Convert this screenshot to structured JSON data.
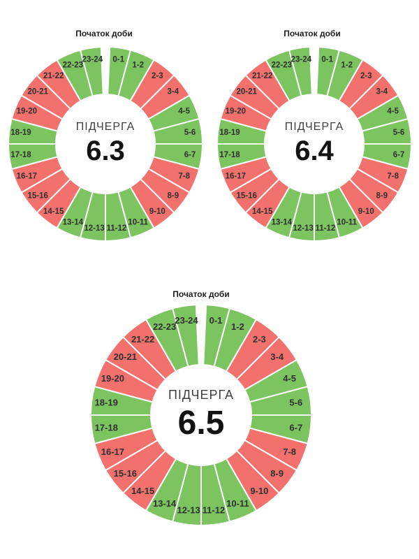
{
  "colors": {
    "green": "#7cc460",
    "red": "#f2716d",
    "separator": "#ffffff",
    "segment_label": "#2f2f2f",
    "title_text": "#1c1c1c",
    "center_label_text": "#3e3e3e",
    "center_value_text": "#121212",
    "background": "#ffffff"
  },
  "chart_data": [
    {
      "type": "donut",
      "title": "Початок доби",
      "center_label": "ПІДЧЕРГА",
      "center_value": "6.3",
      "start_angle": "top",
      "direction": "clockwise",
      "segment_value_hours": 1,
      "categories": [
        "0-1",
        "1-2",
        "2-3",
        "3-4",
        "4-5",
        "5-6",
        "6-7",
        "7-8",
        "8-9",
        "9-10",
        "10-11",
        "11-12",
        "12-13",
        "13-14",
        "14-15",
        "15-16",
        "16-17",
        "17-18",
        "18-19",
        "19-20",
        "20-21",
        "21-22",
        "22-23",
        "23-24"
      ],
      "segment_colors": [
        "green",
        "green",
        "red",
        "red",
        "green",
        "green",
        "green",
        "red",
        "red",
        "red",
        "green",
        "green",
        "green",
        "green",
        "red",
        "red",
        "red",
        "green",
        "green",
        "red",
        "red",
        "red",
        "green",
        "green"
      ]
    },
    {
      "type": "donut",
      "title": "Початок доби",
      "center_label": "ПІДЧЕРГА",
      "center_value": "6.4",
      "start_angle": "top",
      "direction": "clockwise",
      "segment_value_hours": 1,
      "categories": [
        "0-1",
        "1-2",
        "2-3",
        "3-4",
        "4-5",
        "5-6",
        "6-7",
        "7-8",
        "8-9",
        "9-10",
        "10-11",
        "11-12",
        "12-13",
        "13-14",
        "14-15",
        "15-16",
        "16-17",
        "17-18",
        "18-19",
        "19-20",
        "20-21",
        "21-22",
        "22-23",
        "23-24"
      ],
      "segment_colors": [
        "green",
        "green",
        "red",
        "red",
        "green",
        "green",
        "green",
        "red",
        "red",
        "red",
        "green",
        "green",
        "green",
        "green",
        "red",
        "red",
        "red",
        "green",
        "green",
        "red",
        "red",
        "red",
        "green",
        "green"
      ]
    },
    {
      "type": "donut",
      "title": "Початок доби",
      "center_label": "ПІДЧЕРГА",
      "center_value": "6.5",
      "start_angle": "top",
      "direction": "clockwise",
      "segment_value_hours": 1,
      "categories": [
        "0-1",
        "1-2",
        "2-3",
        "3-4",
        "4-5",
        "5-6",
        "6-7",
        "7-8",
        "8-9",
        "9-10",
        "10-11",
        "11-12",
        "12-13",
        "13-14",
        "14-15",
        "15-16",
        "16-17",
        "17-18",
        "18-19",
        "19-20",
        "20-21",
        "21-22",
        "22-23",
        "23-24"
      ],
      "segment_colors": [
        "green",
        "green",
        "red",
        "red",
        "green",
        "green",
        "green",
        "red",
        "red",
        "red",
        "green",
        "green",
        "green",
        "green",
        "red",
        "red",
        "red",
        "green",
        "green",
        "red",
        "red",
        "red",
        "green",
        "green"
      ]
    }
  ]
}
